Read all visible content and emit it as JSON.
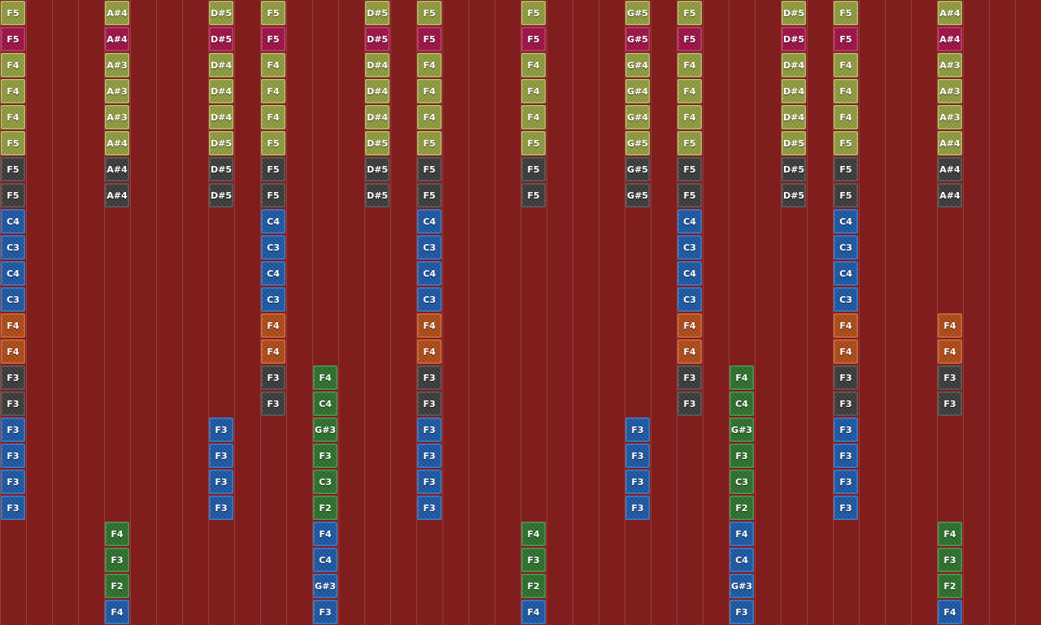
{
  "palette": {
    "background": "#801d1d",
    "gridline": "#aa5f55",
    "olive": {
      "fill": "#8f9a3e",
      "border": "#b9c46a"
    },
    "magenta": {
      "fill": "#9c1246",
      "border": "#cf3a76"
    },
    "dark": {
      "fill": "#3b3b3b",
      "border": "#5a5a5a"
    },
    "blue": {
      "fill": "#1d57a2",
      "border": "#3b7cd0"
    },
    "orange": {
      "fill": "#ad4a18",
      "border": "#d86b35"
    },
    "green": {
      "fill": "#2e6f2d",
      "border": "#4f9a4d"
    },
    "textColor": "#ffffff"
  },
  "columns": [
    {
      "notes": [
        {
          "row": 0,
          "label": "F5",
          "color": "olive"
        },
        {
          "row": 1,
          "label": "F5",
          "color": "magenta"
        },
        {
          "row": 2,
          "label": "F4",
          "color": "olive"
        },
        {
          "row": 3,
          "label": "F4",
          "color": "olive"
        },
        {
          "row": 4,
          "label": "F4",
          "color": "olive"
        },
        {
          "row": 5,
          "label": "F5",
          "color": "olive"
        },
        {
          "row": 6,
          "label": "F5",
          "color": "dark"
        },
        {
          "row": 7,
          "label": "F5",
          "color": "dark"
        },
        {
          "row": 8,
          "label": "C4",
          "color": "blue"
        },
        {
          "row": 9,
          "label": "C3",
          "color": "blue"
        },
        {
          "row": 10,
          "label": "C4",
          "color": "blue"
        },
        {
          "row": 11,
          "label": "C3",
          "color": "blue"
        },
        {
          "row": 12,
          "label": "F4",
          "color": "orange"
        },
        {
          "row": 13,
          "label": "F4",
          "color": "orange"
        },
        {
          "row": 14,
          "label": "F3",
          "color": "dark"
        },
        {
          "row": 15,
          "label": "F3",
          "color": "dark"
        },
        {
          "row": 16,
          "label": "F3",
          "color": "blue"
        },
        {
          "row": 17,
          "label": "F3",
          "color": "blue"
        },
        {
          "row": 18,
          "label": "F3",
          "color": "blue"
        },
        {
          "row": 19,
          "label": "F3",
          "color": "blue"
        }
      ]
    },
    {
      "notes": []
    },
    {
      "notes": []
    },
    {
      "notes": []
    },
    {
      "notes": [
        {
          "row": 0,
          "label": "A#4",
          "color": "olive"
        },
        {
          "row": 1,
          "label": "A#4",
          "color": "magenta"
        },
        {
          "row": 2,
          "label": "A#3",
          "color": "olive"
        },
        {
          "row": 3,
          "label": "A#3",
          "color": "olive"
        },
        {
          "row": 4,
          "label": "A#3",
          "color": "olive"
        },
        {
          "row": 5,
          "label": "A#4",
          "color": "olive"
        },
        {
          "row": 6,
          "label": "A#4",
          "color": "dark"
        },
        {
          "row": 7,
          "label": "A#4",
          "color": "dark"
        },
        {
          "row": 20,
          "label": "F4",
          "color": "green"
        },
        {
          "row": 21,
          "label": "F3",
          "color": "green"
        },
        {
          "row": 22,
          "label": "F2",
          "color": "green"
        },
        {
          "row": 23,
          "label": "F4",
          "color": "blue"
        }
      ]
    },
    {
      "notes": []
    },
    {
      "notes": []
    },
    {
      "notes": []
    },
    {
      "notes": [
        {
          "row": 0,
          "label": "D#5",
          "color": "olive"
        },
        {
          "row": 1,
          "label": "D#5",
          "color": "magenta"
        },
        {
          "row": 2,
          "label": "D#4",
          "color": "olive"
        },
        {
          "row": 3,
          "label": "D#4",
          "color": "olive"
        },
        {
          "row": 4,
          "label": "D#4",
          "color": "olive"
        },
        {
          "row": 5,
          "label": "D#5",
          "color": "olive"
        },
        {
          "row": 6,
          "label": "D#5",
          "color": "dark"
        },
        {
          "row": 7,
          "label": "D#5",
          "color": "dark"
        },
        {
          "row": 16,
          "label": "F3",
          "color": "blue"
        },
        {
          "row": 17,
          "label": "F3",
          "color": "blue"
        },
        {
          "row": 18,
          "label": "F3",
          "color": "blue"
        },
        {
          "row": 19,
          "label": "F3",
          "color": "blue"
        }
      ]
    },
    {
      "notes": []
    },
    {
      "notes": [
        {
          "row": 0,
          "label": "F5",
          "color": "olive"
        },
        {
          "row": 1,
          "label": "F5",
          "color": "magenta"
        },
        {
          "row": 2,
          "label": "F4",
          "color": "olive"
        },
        {
          "row": 3,
          "label": "F4",
          "color": "olive"
        },
        {
          "row": 4,
          "label": "F4",
          "color": "olive"
        },
        {
          "row": 5,
          "label": "F5",
          "color": "olive"
        },
        {
          "row": 6,
          "label": "F5",
          "color": "dark"
        },
        {
          "row": 7,
          "label": "F5",
          "color": "dark"
        },
        {
          "row": 8,
          "label": "C4",
          "color": "blue"
        },
        {
          "row": 9,
          "label": "C3",
          "color": "blue"
        },
        {
          "row": 10,
          "label": "C4",
          "color": "blue"
        },
        {
          "row": 11,
          "label": "C3",
          "color": "blue"
        },
        {
          "row": 12,
          "label": "F4",
          "color": "orange"
        },
        {
          "row": 13,
          "label": "F4",
          "color": "orange"
        },
        {
          "row": 14,
          "label": "F3",
          "color": "dark"
        },
        {
          "row": 15,
          "label": "F3",
          "color": "dark"
        }
      ]
    },
    {
      "notes": []
    },
    {
      "notes": [
        {
          "row": 14,
          "label": "F4",
          "color": "green"
        },
        {
          "row": 15,
          "label": "C4",
          "color": "green"
        },
        {
          "row": 16,
          "label": "G#3",
          "color": "green"
        },
        {
          "row": 17,
          "label": "F3",
          "color": "green"
        },
        {
          "row": 18,
          "label": "C3",
          "color": "green"
        },
        {
          "row": 19,
          "label": "F2",
          "color": "green"
        },
        {
          "row": 20,
          "label": "F4",
          "color": "blue"
        },
        {
          "row": 21,
          "label": "C4",
          "color": "blue"
        },
        {
          "row": 22,
          "label": "G#3",
          "color": "blue"
        },
        {
          "row": 23,
          "label": "F3",
          "color": "blue"
        }
      ]
    },
    {
      "notes": []
    },
    {
      "notes": [
        {
          "row": 0,
          "label": "D#5",
          "color": "olive"
        },
        {
          "row": 1,
          "label": "D#5",
          "color": "magenta"
        },
        {
          "row": 2,
          "label": "D#4",
          "color": "olive"
        },
        {
          "row": 3,
          "label": "D#4",
          "color": "olive"
        },
        {
          "row": 4,
          "label": "D#4",
          "color": "olive"
        },
        {
          "row": 5,
          "label": "D#5",
          "color": "olive"
        },
        {
          "row": 6,
          "label": "D#5",
          "color": "dark"
        },
        {
          "row": 7,
          "label": "D#5",
          "color": "dark"
        }
      ]
    },
    {
      "notes": []
    },
    {
      "notes": [
        {
          "row": 0,
          "label": "F5",
          "color": "olive"
        },
        {
          "row": 1,
          "label": "F5",
          "color": "magenta"
        },
        {
          "row": 2,
          "label": "F4",
          "color": "olive"
        },
        {
          "row": 3,
          "label": "F4",
          "color": "olive"
        },
        {
          "row": 4,
          "label": "F4",
          "color": "olive"
        },
        {
          "row": 5,
          "label": "F5",
          "color": "olive"
        },
        {
          "row": 6,
          "label": "F5",
          "color": "dark"
        },
        {
          "row": 7,
          "label": "F5",
          "color": "dark"
        },
        {
          "row": 8,
          "label": "C4",
          "color": "blue"
        },
        {
          "row": 9,
          "label": "C3",
          "color": "blue"
        },
        {
          "row": 10,
          "label": "C4",
          "color": "blue"
        },
        {
          "row": 11,
          "label": "C3",
          "color": "blue"
        },
        {
          "row": 12,
          "label": "F4",
          "color": "orange"
        },
        {
          "row": 13,
          "label": "F4",
          "color": "orange"
        },
        {
          "row": 14,
          "label": "F3",
          "color": "dark"
        },
        {
          "row": 15,
          "label": "F3",
          "color": "dark"
        },
        {
          "row": 16,
          "label": "F3",
          "color": "blue"
        },
        {
          "row": 17,
          "label": "F3",
          "color": "blue"
        },
        {
          "row": 18,
          "label": "F3",
          "color": "blue"
        },
        {
          "row": 19,
          "label": "F3",
          "color": "blue"
        }
      ]
    },
    {
      "notes": []
    },
    {
      "notes": []
    },
    {
      "notes": []
    },
    {
      "notes": [
        {
          "row": 0,
          "label": "F5",
          "color": "olive"
        },
        {
          "row": 1,
          "label": "F5",
          "color": "magenta"
        },
        {
          "row": 2,
          "label": "F4",
          "color": "olive"
        },
        {
          "row": 3,
          "label": "F4",
          "color": "olive"
        },
        {
          "row": 4,
          "label": "F4",
          "color": "olive"
        },
        {
          "row": 5,
          "label": "F5",
          "color": "olive"
        },
        {
          "row": 6,
          "label": "F5",
          "color": "dark"
        },
        {
          "row": 7,
          "label": "F5",
          "color": "dark"
        },
        {
          "row": 20,
          "label": "F4",
          "color": "green"
        },
        {
          "row": 21,
          "label": "F3",
          "color": "green"
        },
        {
          "row": 22,
          "label": "F2",
          "color": "green"
        },
        {
          "row": 23,
          "label": "F4",
          "color": "blue"
        }
      ]
    },
    {
      "notes": []
    },
    {
      "notes": []
    },
    {
      "notes": []
    },
    {
      "notes": [
        {
          "row": 0,
          "label": "G#5",
          "color": "olive"
        },
        {
          "row": 1,
          "label": "G#5",
          "color": "magenta"
        },
        {
          "row": 2,
          "label": "G#4",
          "color": "olive"
        },
        {
          "row": 3,
          "label": "G#4",
          "color": "olive"
        },
        {
          "row": 4,
          "label": "G#4",
          "color": "olive"
        },
        {
          "row": 5,
          "label": "G#5",
          "color": "olive"
        },
        {
          "row": 6,
          "label": "G#5",
          "color": "dark"
        },
        {
          "row": 7,
          "label": "G#5",
          "color": "dark"
        },
        {
          "row": 16,
          "label": "F3",
          "color": "blue"
        },
        {
          "row": 17,
          "label": "F3",
          "color": "blue"
        },
        {
          "row": 18,
          "label": "F3",
          "color": "blue"
        },
        {
          "row": 19,
          "label": "F3",
          "color": "blue"
        }
      ]
    },
    {
      "notes": []
    },
    {
      "notes": [
        {
          "row": 0,
          "label": "F5",
          "color": "olive"
        },
        {
          "row": 1,
          "label": "F5",
          "color": "magenta"
        },
        {
          "row": 2,
          "label": "F4",
          "color": "olive"
        },
        {
          "row": 3,
          "label": "F4",
          "color": "olive"
        },
        {
          "row": 4,
          "label": "F4",
          "color": "olive"
        },
        {
          "row": 5,
          "label": "F5",
          "color": "olive"
        },
        {
          "row": 6,
          "label": "F5",
          "color": "dark"
        },
        {
          "row": 7,
          "label": "F5",
          "color": "dark"
        },
        {
          "row": 8,
          "label": "C4",
          "color": "blue"
        },
        {
          "row": 9,
          "label": "C3",
          "color": "blue"
        },
        {
          "row": 10,
          "label": "C4",
          "color": "blue"
        },
        {
          "row": 11,
          "label": "C3",
          "color": "blue"
        },
        {
          "row": 12,
          "label": "F4",
          "color": "orange"
        },
        {
          "row": 13,
          "label": "F4",
          "color": "orange"
        },
        {
          "row": 14,
          "label": "F3",
          "color": "dark"
        },
        {
          "row": 15,
          "label": "F3",
          "color": "dark"
        }
      ]
    },
    {
      "notes": []
    },
    {
      "notes": [
        {
          "row": 14,
          "label": "F4",
          "color": "green"
        },
        {
          "row": 15,
          "label": "C4",
          "color": "green"
        },
        {
          "row": 16,
          "label": "G#3",
          "color": "green"
        },
        {
          "row": 17,
          "label": "F3",
          "color": "green"
        },
        {
          "row": 18,
          "label": "C3",
          "color": "green"
        },
        {
          "row": 19,
          "label": "F2",
          "color": "green"
        },
        {
          "row": 20,
          "label": "F4",
          "color": "blue"
        },
        {
          "row": 21,
          "label": "C4",
          "color": "blue"
        },
        {
          "row": 22,
          "label": "G#3",
          "color": "blue"
        },
        {
          "row": 23,
          "label": "F3",
          "color": "blue"
        }
      ]
    },
    {
      "notes": []
    },
    {
      "notes": [
        {
          "row": 0,
          "label": "D#5",
          "color": "olive"
        },
        {
          "row": 1,
          "label": "D#5",
          "color": "magenta"
        },
        {
          "row": 2,
          "label": "D#4",
          "color": "olive"
        },
        {
          "row": 3,
          "label": "D#4",
          "color": "olive"
        },
        {
          "row": 4,
          "label": "D#4",
          "color": "olive"
        },
        {
          "row": 5,
          "label": "D#5",
          "color": "olive"
        },
        {
          "row": 6,
          "label": "D#5",
          "color": "dark"
        },
        {
          "row": 7,
          "label": "D#5",
          "color": "dark"
        }
      ]
    },
    {
      "notes": []
    },
    {
      "notes": [
        {
          "row": 0,
          "label": "F5",
          "color": "olive"
        },
        {
          "row": 1,
          "label": "F5",
          "color": "magenta"
        },
        {
          "row": 2,
          "label": "F4",
          "color": "olive"
        },
        {
          "row": 3,
          "label": "F4",
          "color": "olive"
        },
        {
          "row": 4,
          "label": "F4",
          "color": "olive"
        },
        {
          "row": 5,
          "label": "F5",
          "color": "olive"
        },
        {
          "row": 6,
          "label": "F5",
          "color": "dark"
        },
        {
          "row": 7,
          "label": "F5",
          "color": "dark"
        },
        {
          "row": 8,
          "label": "C4",
          "color": "blue"
        },
        {
          "row": 9,
          "label": "C3",
          "color": "blue"
        },
        {
          "row": 10,
          "label": "C4",
          "color": "blue"
        },
        {
          "row": 11,
          "label": "C3",
          "color": "blue"
        },
        {
          "row": 12,
          "label": "F4",
          "color": "orange"
        },
        {
          "row": 13,
          "label": "F4",
          "color": "orange"
        },
        {
          "row": 14,
          "label": "F3",
          "color": "dark"
        },
        {
          "row": 15,
          "label": "F3",
          "color": "dark"
        },
        {
          "row": 16,
          "label": "F3",
          "color": "blue"
        },
        {
          "row": 17,
          "label": "F3",
          "color": "blue"
        },
        {
          "row": 18,
          "label": "F3",
          "color": "blue"
        },
        {
          "row": 19,
          "label": "F3",
          "color": "blue"
        }
      ]
    },
    {
      "notes": []
    },
    {
      "notes": []
    },
    {
      "notes": []
    },
    {
      "notes": [
        {
          "row": 0,
          "label": "A#4",
          "color": "olive"
        },
        {
          "row": 1,
          "label": "A#4",
          "color": "magenta"
        },
        {
          "row": 2,
          "label": "A#3",
          "color": "olive"
        },
        {
          "row": 3,
          "label": "A#3",
          "color": "olive"
        },
        {
          "row": 4,
          "label": "A#3",
          "color": "olive"
        },
        {
          "row": 5,
          "label": "A#4",
          "color": "olive"
        },
        {
          "row": 6,
          "label": "A#4",
          "color": "dark"
        },
        {
          "row": 7,
          "label": "A#4",
          "color": "dark"
        },
        {
          "row": 12,
          "label": "F4",
          "color": "orange"
        },
        {
          "row": 13,
          "label": "F4",
          "color": "orange"
        },
        {
          "row": 14,
          "label": "F3",
          "color": "dark"
        },
        {
          "row": 15,
          "label": "F3",
          "color": "dark"
        },
        {
          "row": 20,
          "label": "F4",
          "color": "green"
        },
        {
          "row": 21,
          "label": "F3",
          "color": "green"
        },
        {
          "row": 22,
          "label": "F2",
          "color": "green"
        },
        {
          "row": 23,
          "label": "F4",
          "color": "blue"
        }
      ]
    },
    {
      "notes": []
    },
    {
      "notes": []
    },
    {
      "notes": []
    }
  ]
}
